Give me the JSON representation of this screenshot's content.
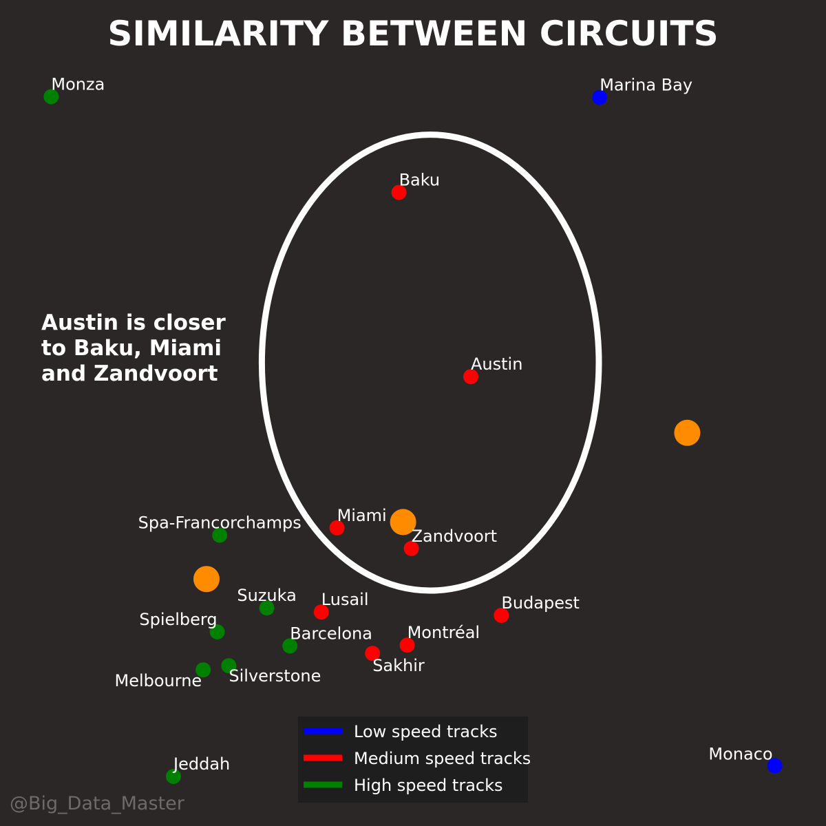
{
  "chart_data": {
    "type": "scatter",
    "title": "SIMILARITY BETWEEN CIRCUITS",
    "xlabel": "",
    "ylabel": "",
    "xlim": [
      0,
      100
    ],
    "ylim": [
      0,
      100
    ],
    "grid": false,
    "legend_position": "bottom-center",
    "annotation": [
      "Austin is closer",
      "to Baku, Miami",
      "and Zandvoort"
    ],
    "watermark": "@Big_Data_Master",
    "background_color": "#2b2727",
    "series": [
      {
        "name": "Low speed tracks",
        "color": "#0000ff",
        "points": [
          {
            "label": "Marina Bay",
            "x": 72.6,
            "y": 88.2
          },
          {
            "label": "Monaco",
            "x": 93.8,
            "y": 7.3
          }
        ]
      },
      {
        "name": "Medium speed tracks",
        "color": "#ff0000",
        "points": [
          {
            "label": "Baku",
            "x": 48.3,
            "y": 76.7
          },
          {
            "label": "Austin",
            "x": 57.0,
            "y": 54.4
          },
          {
            "label": "Miami",
            "x": 40.8,
            "y": 36.1
          },
          {
            "label": "Zandvoort",
            "x": 49.8,
            "y": 33.6
          },
          {
            "label": "Lusail",
            "x": 38.9,
            "y": 25.9
          },
          {
            "label": "Budapest",
            "x": 60.7,
            "y": 25.5
          },
          {
            "label": "Montréal",
            "x": 49.3,
            "y": 21.9
          },
          {
            "label": "Sakhir",
            "x": 45.1,
            "y": 20.9
          }
        ]
      },
      {
        "name": "High speed tracks",
        "color": "#008000",
        "points": [
          {
            "label": "Monza",
            "x": 6.2,
            "y": 88.3
          },
          {
            "label": "Spa-Francorchamps",
            "x": 26.6,
            "y": 35.2
          },
          {
            "label": "Suzuka",
            "x": 32.3,
            "y": 26.4
          },
          {
            "label": "Spielberg",
            "x": 26.3,
            "y": 23.5
          },
          {
            "label": "Barcelona",
            "x": 35.1,
            "y": 21.8
          },
          {
            "label": "Silverstone",
            "x": 27.7,
            "y": 19.4
          },
          {
            "label": "Melbourne",
            "x": 24.6,
            "y": 18.9
          },
          {
            "label": "Jeddah",
            "x": 21.0,
            "y": 6.0
          }
        ]
      }
    ],
    "centroids": {
      "color": "#ff8c00",
      "points": [
        {
          "x": 83.2,
          "y": 47.6
        },
        {
          "x": 48.8,
          "y": 36.8
        },
        {
          "x": 25.0,
          "y": 29.9
        }
      ]
    },
    "highlight_ellipse": {
      "cx": 52.1,
      "cy": 56.1,
      "rx": 20.4,
      "ry": 27.6,
      "color": "#ffffff"
    }
  }
}
